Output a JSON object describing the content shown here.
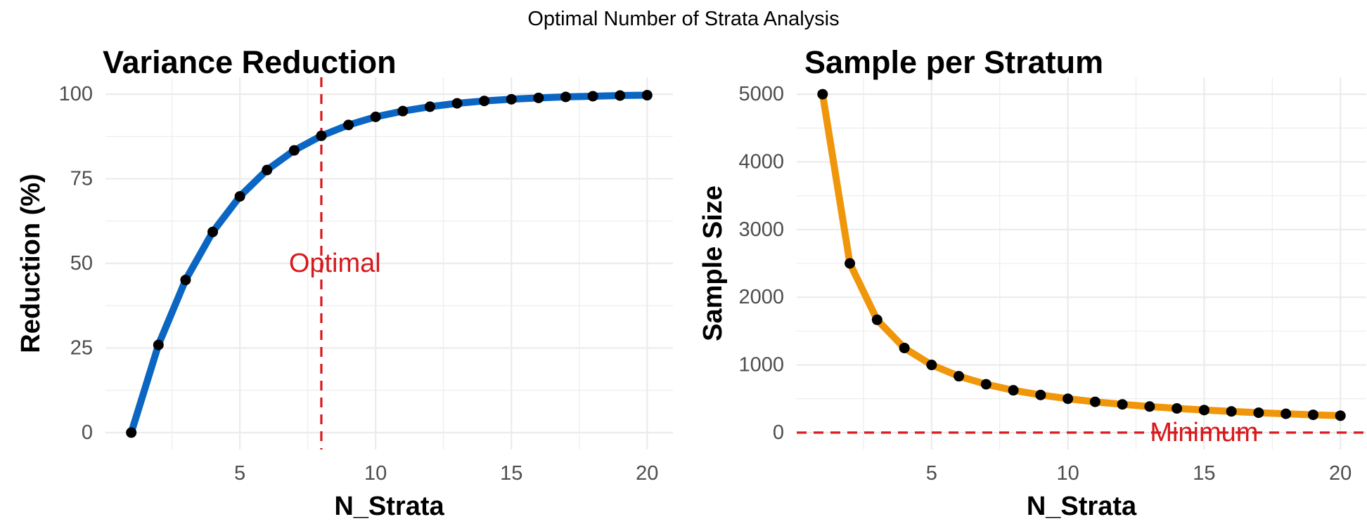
{
  "suptitle": "Optimal Number of Strata Analysis",
  "chart_data": [
    {
      "type": "line",
      "title": "Variance Reduction",
      "xlabel": "N_Strata",
      "ylabel": "Reduction (%)",
      "x": [
        1,
        2,
        3,
        4,
        5,
        6,
        7,
        8,
        9,
        10,
        11,
        12,
        13,
        14,
        15,
        16,
        17,
        18,
        19,
        20
      ],
      "series": [
        {
          "values": [
            0,
            25.9,
            45.1,
            59.3,
            69.8,
            77.6,
            83.4,
            87.7,
            90.9,
            93.3,
            95.0,
            96.3,
            97.3,
            98.0,
            98.5,
            98.9,
            99.2,
            99.4,
            99.6,
            99.7
          ]
        }
      ],
      "xlim": [
        0.05,
        20.95
      ],
      "ylim": [
        -5,
        105
      ],
      "xticks": [
        5,
        10,
        15,
        20
      ],
      "yticks": [
        0,
        25,
        50,
        75,
        100
      ],
      "line_color": "#0a66c2",
      "point_color": "#000000",
      "reference_line": {
        "axis": "x",
        "value": 8,
        "color": "#d7191c",
        "style": "dashed"
      },
      "annotation": {
        "text": "Optimal",
        "x": 8.5,
        "y": 50,
        "color": "#d7191c"
      },
      "grid": true,
      "legend": "none"
    },
    {
      "type": "line",
      "title": "Sample per Stratum",
      "xlabel": "N_Strata",
      "ylabel": "Sample Size",
      "x": [
        1,
        2,
        3,
        4,
        5,
        6,
        7,
        8,
        9,
        10,
        11,
        12,
        13,
        14,
        15,
        16,
        17,
        18,
        19,
        20
      ],
      "series": [
        {
          "values": [
            5000,
            2500,
            1667,
            1250,
            1000,
            833,
            714,
            625,
            556,
            500,
            455,
            417,
            385,
            357,
            333,
            313,
            294,
            278,
            263,
            250
          ]
        }
      ],
      "xlim": [
        0.05,
        20.95
      ],
      "ylim": [
        -250,
        5250
      ],
      "xticks": [
        5,
        10,
        15,
        20
      ],
      "yticks": [
        0,
        1000,
        2000,
        3000,
        4000,
        5000
      ],
      "line_color": "#f0960a",
      "point_color": "#000000",
      "reference_line": {
        "axis": "y",
        "value": 0,
        "color": "#d7191c",
        "style": "dashed"
      },
      "annotation": {
        "text": "Minimum",
        "x": 15,
        "y": 0,
        "color": "#d7191c"
      },
      "grid": true,
      "legend": "none"
    }
  ]
}
